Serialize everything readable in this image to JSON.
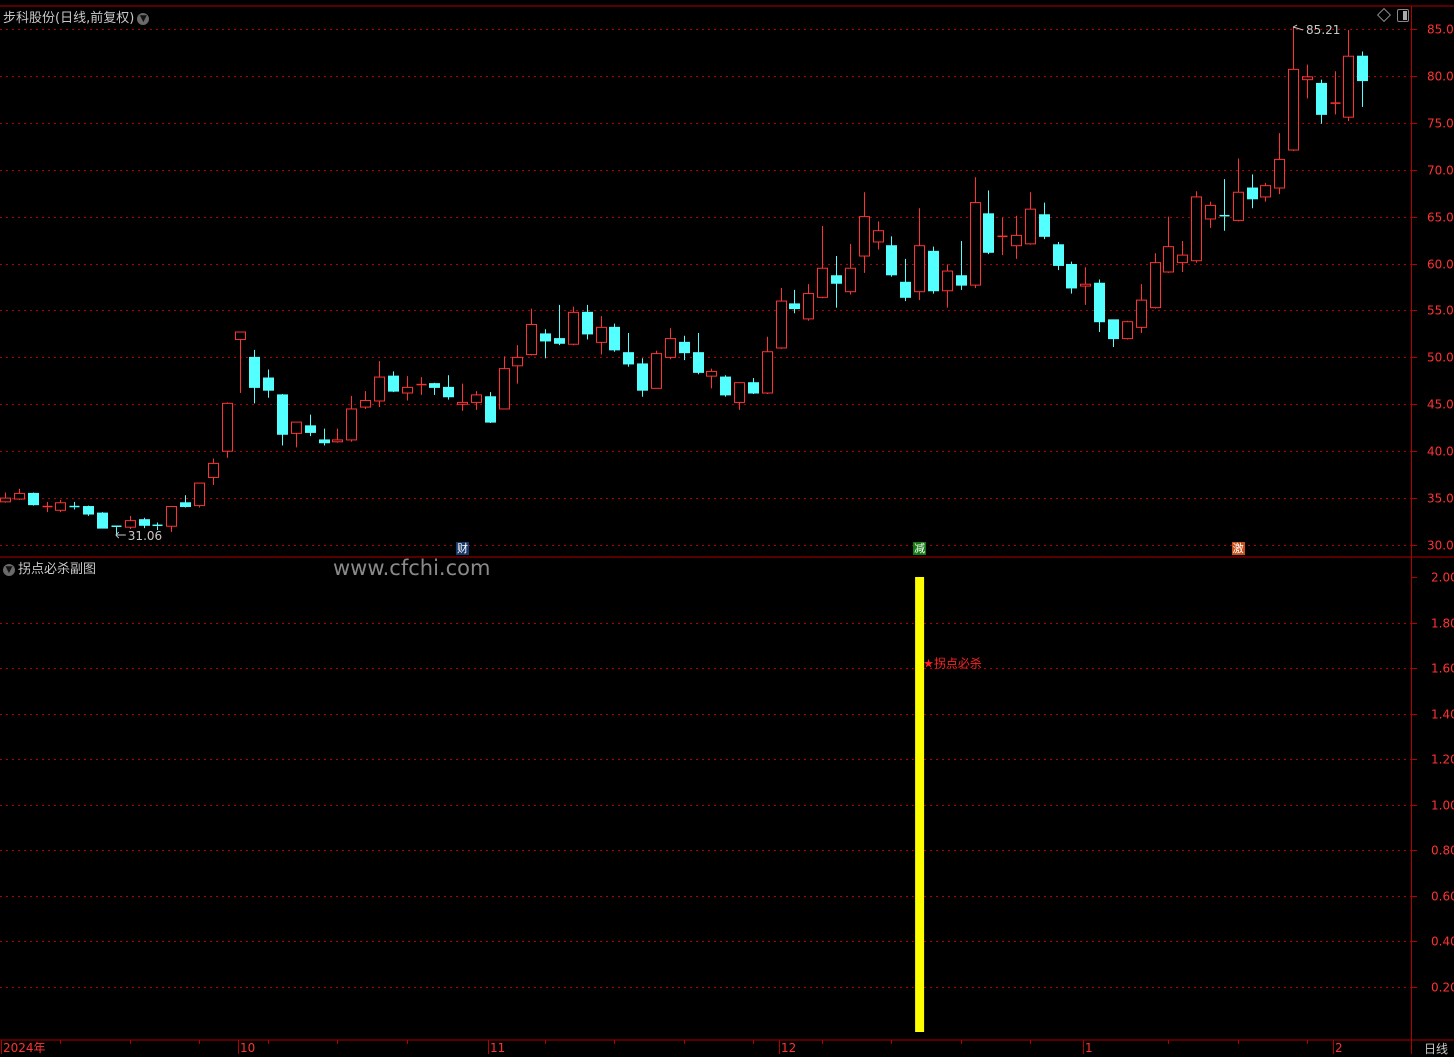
{
  "header": {
    "title": "步科股份(日线,前复权)",
    "dropdown_icon": "chevron-down-icon"
  },
  "toolbar_icons": [
    "diamond-icon",
    "panel-toggle-icon"
  ],
  "sub_panel": {
    "title": "拐点必杀副图",
    "watermark": "www.cfchi.com",
    "signal_label": "★拐点必杀"
  },
  "footer": {
    "period": "日线"
  },
  "markers": [
    {
      "text": "财",
      "index": 33,
      "color": "#1a3a6a"
    },
    {
      "text": "减",
      "index": 66,
      "color": "#127a12"
    },
    {
      "text": "激",
      "index": 89,
      "color": "#c8501a"
    }
  ],
  "colors": {
    "up": "#ff3232",
    "down": "#54ffff",
    "grid": "#b00000",
    "axis_text": "#ff3232",
    "indicator": "#ffff00",
    "background": "#000000"
  },
  "chart_data": [
    {
      "type": "candlestick",
      "title": "步科股份(日线,前复权)",
      "ylim": [
        30,
        85
      ],
      "yticks": [
        "85.00",
        "80.00",
        "75.00",
        "70.00",
        "65.00",
        "60.00",
        "55.00",
        "50.00",
        "45.00",
        "40.00",
        "35.00",
        "30.00"
      ],
      "grid": true,
      "x_tick_labels": [
        {
          "label": "2024年",
          "index": 0
        },
        {
          "label": "10",
          "index": 17
        },
        {
          "label": "11",
          "index": 35
        },
        {
          "label": "12",
          "index": 56
        },
        {
          "label": "1",
          "index": 78
        },
        {
          "label": "2",
          "index": 96
        }
      ],
      "annotations": [
        {
          "text": "85.21",
          "index": 93,
          "value": 85.21,
          "kind": "high"
        },
        {
          "text": "31.06",
          "index": 8,
          "value": 31.06,
          "kind": "low"
        }
      ],
      "ohlc_fields": [
        "open",
        "high",
        "low",
        "close"
      ],
      "ohlc": [
        [
          34.6,
          35.6,
          34.5,
          35.0
        ],
        [
          34.9,
          36.0,
          34.8,
          35.5
        ],
        [
          35.5,
          35.6,
          34.2,
          34.3
        ],
        [
          34.0,
          34.6,
          33.5,
          34.1
        ],
        [
          33.7,
          34.8,
          33.5,
          34.5
        ],
        [
          34.1,
          34.6,
          33.8,
          34.0
        ],
        [
          34.1,
          34.2,
          33.1,
          33.3
        ],
        [
          33.4,
          33.5,
          31.8,
          31.8
        ],
        [
          32.0,
          32.0,
          31.06,
          31.9
        ],
        [
          31.9,
          33.1,
          31.7,
          32.6
        ],
        [
          32.7,
          32.9,
          31.8,
          32.1
        ],
        [
          32.1,
          32.4,
          31.6,
          32.0
        ],
        [
          32.0,
          34.1,
          31.4,
          34.1
        ],
        [
          34.5,
          35.3,
          34.0,
          34.1
        ],
        [
          34.2,
          36.6,
          34.0,
          36.6
        ],
        [
          37.2,
          39.2,
          36.4,
          38.7
        ],
        [
          40.0,
          45.2,
          39.3,
          45.1
        ],
        [
          51.9,
          52.7,
          46.2,
          52.7
        ],
        [
          50.0,
          50.8,
          45.1,
          46.8
        ],
        [
          47.8,
          48.7,
          45.7,
          46.5
        ],
        [
          46.0,
          46.1,
          40.6,
          41.8
        ],
        [
          41.9,
          43.1,
          40.4,
          43.1
        ],
        [
          42.7,
          43.9,
          41.6,
          42.0
        ],
        [
          41.2,
          42.4,
          40.6,
          40.9
        ],
        [
          41.0,
          42.4,
          40.9,
          41.2
        ],
        [
          41.2,
          45.9,
          41.0,
          44.5
        ],
        [
          44.7,
          46.4,
          44.5,
          45.4
        ],
        [
          45.35,
          49.6,
          44.7,
          47.9
        ],
        [
          48.0,
          48.5,
          46.3,
          46.4
        ],
        [
          46.2,
          48.0,
          45.4,
          46.8
        ],
        [
          47.0,
          47.9,
          46.0,
          47.1
        ],
        [
          47.2,
          47.3,
          46.0,
          46.8
        ],
        [
          46.8,
          48.1,
          45.5,
          45.8
        ],
        [
          45.0,
          47.2,
          44.3,
          45.2
        ],
        [
          45.2,
          46.4,
          44.4,
          46.0
        ],
        [
          45.8,
          46.3,
          43.0,
          43.1
        ],
        [
          44.5,
          50.1,
          44.5,
          48.8
        ],
        [
          49.1,
          51.3,
          47.2,
          50.0
        ],
        [
          50.3,
          55.2,
          50.2,
          53.5
        ],
        [
          52.5,
          53.0,
          49.9,
          51.75
        ],
        [
          52.0,
          55.6,
          51.3,
          51.5
        ],
        [
          51.4,
          55.4,
          51.3,
          54.8
        ],
        [
          54.8,
          55.6,
          51.9,
          52.5
        ],
        [
          51.6,
          54.4,
          50.3,
          53.2
        ],
        [
          53.2,
          53.6,
          50.6,
          50.8
        ],
        [
          50.5,
          52.6,
          49.0,
          49.3
        ],
        [
          49.3,
          49.9,
          45.8,
          46.5
        ],
        [
          46.7,
          50.7,
          46.7,
          50.4
        ],
        [
          50.0,
          53.1,
          49.8,
          52.0
        ],
        [
          51.6,
          52.3,
          49.7,
          50.5
        ],
        [
          50.5,
          52.6,
          48.2,
          48.4
        ],
        [
          48.0,
          48.8,
          46.7,
          48.5
        ],
        [
          47.9,
          48.1,
          45.8,
          46.0
        ],
        [
          45.2,
          47.3,
          44.4,
          47.3
        ],
        [
          47.3,
          47.8,
          46.1,
          46.2
        ],
        [
          46.2,
          52.2,
          46.1,
          50.6
        ],
        [
          51.0,
          57.4,
          50.9,
          56.0
        ],
        [
          55.7,
          57.2,
          54.7,
          55.2
        ],
        [
          54.1,
          57.8,
          53.9,
          56.8
        ],
        [
          56.4,
          64.0,
          56.3,
          59.5
        ],
        [
          58.7,
          60.8,
          55.3,
          57.9
        ],
        [
          57.0,
          62.1,
          56.7,
          59.5
        ],
        [
          60.8,
          67.6,
          59.0,
          65.0
        ],
        [
          62.3,
          64.5,
          61.5,
          63.5
        ],
        [
          61.9,
          62.9,
          58.6,
          58.8
        ],
        [
          58.0,
          60.5,
          56.0,
          56.4
        ],
        [
          57.0,
          65.9,
          56.1,
          61.9
        ],
        [
          61.3,
          61.8,
          56.8,
          57.1
        ],
        [
          57.1,
          59.9,
          55.3,
          59.2
        ],
        [
          58.7,
          62.4,
          57.2,
          57.7
        ],
        [
          57.7,
          69.2,
          57.4,
          66.5
        ],
        [
          65.3,
          67.8,
          61.0,
          61.2
        ],
        [
          62.8,
          64.9,
          60.9,
          62.9
        ],
        [
          61.9,
          65.1,
          60.5,
          63.0
        ],
        [
          62.1,
          67.6,
          62.0,
          65.8
        ],
        [
          65.2,
          66.5,
          62.6,
          62.9
        ],
        [
          62.0,
          62.3,
          59.3,
          59.8
        ],
        [
          59.9,
          60.2,
          56.8,
          57.4
        ],
        [
          57.6,
          59.6,
          55.6,
          57.8
        ],
        [
          57.9,
          58.3,
          52.7,
          53.8
        ],
        [
          54.0,
          54.0,
          51.1,
          52.0
        ],
        [
          52.0,
          53.9,
          51.9,
          53.8
        ],
        [
          53.2,
          57.8,
          52.6,
          56.1
        ],
        [
          55.3,
          61.1,
          55.2,
          60.1
        ],
        [
          59.1,
          65.0,
          59.0,
          61.8
        ],
        [
          60.1,
          62.4,
          59.1,
          60.9
        ],
        [
          60.3,
          67.7,
          60.1,
          67.1
        ],
        [
          64.75,
          66.6,
          63.8,
          66.2
        ],
        [
          65.1,
          69.0,
          63.5,
          65.0
        ],
        [
          64.6,
          71.2,
          64.5,
          67.6
        ],
        [
          68.05,
          69.5,
          65.9,
          66.9
        ],
        [
          67.1,
          68.6,
          66.6,
          68.3
        ],
        [
          68.05,
          73.9,
          67.4,
          71.1
        ],
        [
          72.1,
          85.21,
          72.0,
          80.7
        ],
        [
          79.6,
          81.2,
          77.6,
          79.9
        ],
        [
          79.2,
          79.6,
          74.9,
          75.9
        ],
        [
          77.0,
          80.5,
          75.9,
          77.1
        ],
        [
          75.6,
          84.9,
          75.2,
          82.1
        ],
        [
          82.1,
          82.6,
          76.7,
          79.5
        ]
      ]
    },
    {
      "type": "bar",
      "title": "拐点必杀副图",
      "ylim": [
        0,
        2
      ],
      "yticks": [
        "2.00",
        "1.80",
        "1.60",
        "1.40",
        "1.20",
        "1.00",
        "0.80",
        "0.60",
        "0.40",
        "0.20"
      ],
      "grid": true,
      "bars": [
        {
          "index": 66,
          "value": 2.0
        }
      ],
      "labels": [
        {
          "text": "★拐点必杀",
          "index": 66,
          "value": 1.62
        }
      ]
    }
  ]
}
